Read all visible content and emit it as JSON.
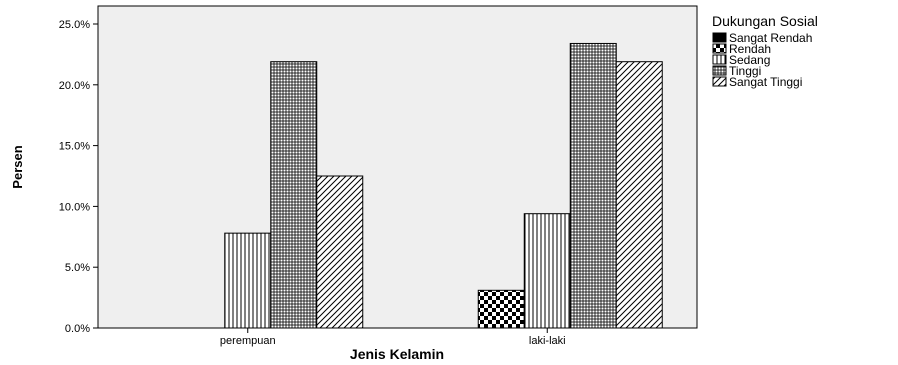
{
  "chart_data": {
    "type": "bar",
    "xlabel": "Jenis Kelamin",
    "ylabel": "Persen",
    "categories": [
      "perempuan",
      "laki-laki"
    ],
    "ylim": [
      0,
      25
    ],
    "yticks": [
      "0.0%",
      "5.0%",
      "10.0%",
      "15.0%",
      "20.0%",
      "25.0%"
    ],
    "ytick_values": [
      0,
      5,
      10,
      15,
      20,
      25
    ],
    "grid": false,
    "legend_title": "Dukungan Sosial",
    "legend_position": "right",
    "background": "#efefef",
    "series": [
      {
        "name": "Sangat Rendah",
        "pattern": "solid",
        "values": [
          0,
          0
        ]
      },
      {
        "name": "Rendah",
        "pattern": "checker",
        "values": [
          0,
          3.1
        ]
      },
      {
        "name": "Sedang",
        "pattern": "vertical",
        "values": [
          7.8,
          9.4
        ]
      },
      {
        "name": "Tinggi",
        "pattern": "grid",
        "values": [
          21.9,
          23.4
        ]
      },
      {
        "name": "Sangat Tinggi",
        "pattern": "diagonal",
        "values": [
          12.5,
          21.9
        ]
      }
    ]
  }
}
